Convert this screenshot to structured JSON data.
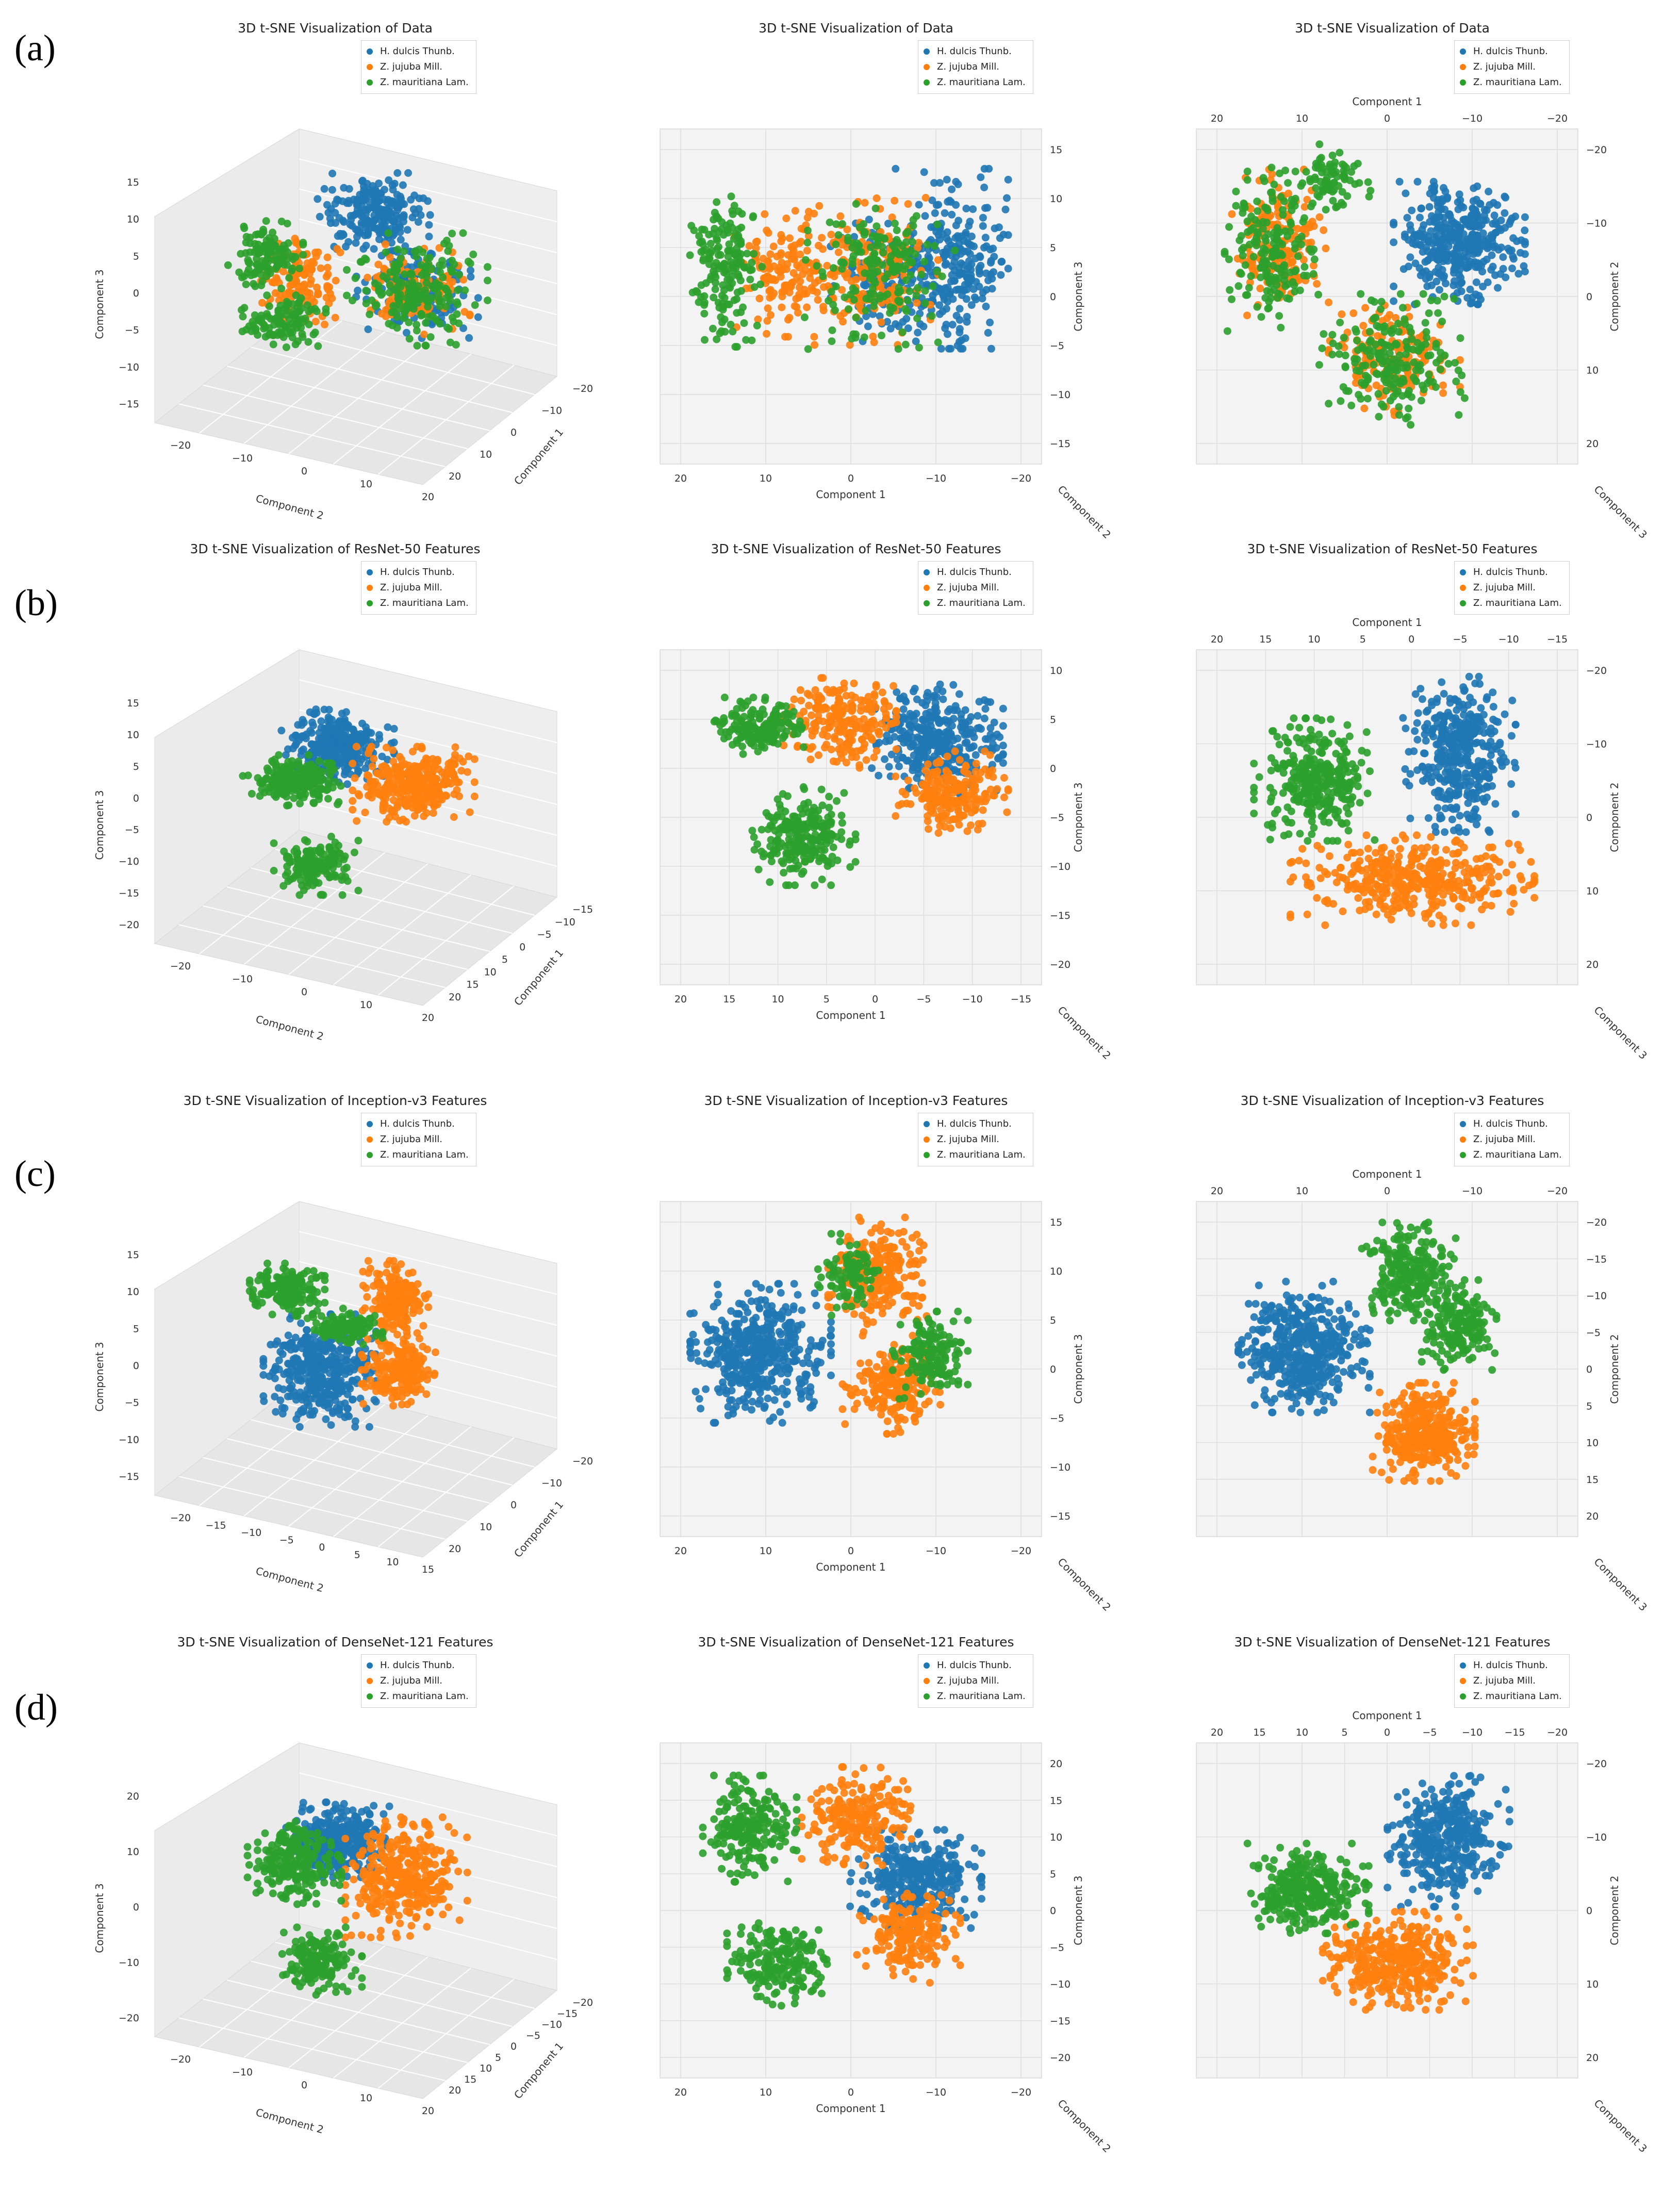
{
  "colors": {
    "H. dulcis Thunb.": "#1f77b4",
    "Z. jujuba Mill.": "#ff7f0e",
    "Z. mauritiana Lam.": "#2ca02c"
  },
  "legend": [
    "H. dulcis Thunb.",
    "Z. jujuba Mill.",
    "Z. mauritiana Lam."
  ],
  "rows": [
    {
      "label": "(a)",
      "title": "3D t-SNE Visualization of Data"
    },
    {
      "label": "(b)",
      "title": "3D t-SNE Visualization of ResNet-50 Features"
    },
    {
      "label": "(c)",
      "title": "3D t-SNE Visualization of Inception-v3 Features"
    },
    {
      "label": "(d)",
      "title": "3D t-SNE Visualization of DenseNet-121 Features"
    }
  ],
  "chart_data": [
    {
      "type": "scatter",
      "row": "(a)",
      "view": "isometric",
      "title": "3D t-SNE Visualization of Data",
      "xlabel": "Component 2",
      "ylabel": "Component 1",
      "zlabel": "Component 3",
      "xticks": [
        "−20",
        "−10",
        "0",
        "10",
        "20"
      ],
      "yticks": [
        "−20",
        "−10",
        "0",
        "10",
        "20"
      ],
      "zticks": [
        "15",
        "10",
        "5",
        "0",
        "−5",
        "−10",
        "−15"
      ],
      "series": [
        {
          "name": "H. dulcis Thunb.",
          "clusters": [
            {
              "u": 0.55,
              "v": 0.26,
              "rx": 0.12,
              "ry": 0.11,
              "n": 230
            },
            {
              "u": 0.67,
              "v": 0.52,
              "rx": 0.13,
              "ry": 0.13,
              "n": 150
            }
          ]
        },
        {
          "name": "Z. jujuba Mill.",
          "clusters": [
            {
              "u": 0.34,
              "v": 0.5,
              "rx": 0.09,
              "ry": 0.12,
              "n": 130
            },
            {
              "u": 0.66,
              "v": 0.52,
              "rx": 0.12,
              "ry": 0.12,
              "n": 120
            }
          ]
        },
        {
          "name": "Z. mauritiana Lam.",
          "clusters": [
            {
              "u": 0.25,
              "v": 0.4,
              "rx": 0.08,
              "ry": 0.09,
              "n": 120
            },
            {
              "u": 0.3,
              "v": 0.63,
              "rx": 0.09,
              "ry": 0.08,
              "n": 110
            },
            {
              "u": 0.67,
              "v": 0.52,
              "rx": 0.15,
              "ry": 0.15,
              "n": 200
            }
          ]
        }
      ]
    },
    {
      "type": "scatter",
      "row": "(a)",
      "view": "front",
      "title": "3D t-SNE Visualization of Data",
      "xlabel": "Component 1",
      "ylabel": "Component 3",
      "zlabel": "Component 2",
      "xticks": [
        "20",
        "10",
        "0",
        "−10",
        "−20"
      ],
      "yticks": [
        "15",
        "10",
        "5",
        "0",
        "−5",
        "−10",
        "−15"
      ],
      "series": [
        {
          "name": "H. dulcis Thunb.",
          "clusters": [
            {
              "u": 0.78,
              "v": 0.38,
              "rx": 0.12,
              "ry": 0.22,
              "n": 250
            },
            {
              "u": 0.6,
              "v": 0.45,
              "rx": 0.12,
              "ry": 0.16,
              "n": 120
            }
          ]
        },
        {
          "name": "Z. jujuba Mill.",
          "clusters": [
            {
              "u": 0.32,
              "v": 0.42,
              "rx": 0.12,
              "ry": 0.16,
              "n": 150
            },
            {
              "u": 0.56,
              "v": 0.42,
              "rx": 0.14,
              "ry": 0.18,
              "n": 170
            }
          ]
        },
        {
          "name": "Z. mauritiana Lam.",
          "clusters": [
            {
              "u": 0.15,
              "v": 0.4,
              "rx": 0.08,
              "ry": 0.2,
              "n": 170
            },
            {
              "u": 0.58,
              "v": 0.42,
              "rx": 0.16,
              "ry": 0.19,
              "n": 180
            }
          ]
        }
      ]
    },
    {
      "type": "scatter",
      "row": "(a)",
      "view": "top",
      "title": "3D t-SNE Visualization of Data",
      "xlabel": "Component 1",
      "ylabel": "Component 2",
      "zlabel": "Component 3",
      "xticks": [
        "20",
        "10",
        "0",
        "−10",
        "−20"
      ],
      "yticks": [
        "−20",
        "−10",
        "0",
        "10",
        "20"
      ],
      "series": [
        {
          "name": "H. dulcis Thunb.",
          "clusters": [
            {
              "u": 0.7,
              "v": 0.33,
              "rx": 0.14,
              "ry": 0.15,
              "n": 380
            }
          ]
        },
        {
          "name": "Z. jujuba Mill.",
          "clusters": [
            {
              "u": 0.2,
              "v": 0.33,
              "rx": 0.1,
              "ry": 0.18,
              "n": 180
            },
            {
              "u": 0.52,
              "v": 0.7,
              "rx": 0.14,
              "ry": 0.14,
              "n": 170
            }
          ]
        },
        {
          "name": "Z. mauritiana Lam.",
          "clusters": [
            {
              "u": 0.18,
              "v": 0.35,
              "rx": 0.1,
              "ry": 0.2,
              "n": 180
            },
            {
              "u": 0.35,
              "v": 0.12,
              "rx": 0.08,
              "ry": 0.08,
              "n": 80
            },
            {
              "u": 0.52,
              "v": 0.7,
              "rx": 0.16,
              "ry": 0.16,
              "n": 200
            }
          ]
        }
      ]
    },
    {
      "type": "scatter",
      "row": "(b)",
      "view": "isometric",
      "title": "3D t-SNE Visualization of ResNet-50 Features",
      "xlabel": "Component 2",
      "ylabel": "Component 1",
      "zlabel": "Component 3",
      "xticks": [
        "−20",
        "−10",
        "0",
        "10",
        "20"
      ],
      "yticks": [
        "−15",
        "−10",
        "−5",
        "0",
        "5",
        "10",
        "15",
        "20"
      ],
      "zticks": [
        "15",
        "10",
        "5",
        "0",
        "−5",
        "−10",
        "−15",
        "−20"
      ],
      "series": [
        {
          "name": "H. dulcis Thunb.",
          "clusters": [
            {
              "u": 0.45,
              "v": 0.3,
              "rx": 0.12,
              "ry": 0.1,
              "n": 320
            }
          ]
        },
        {
          "name": "Z. jujuba Mill.",
          "clusters": [
            {
              "u": 0.66,
              "v": 0.43,
              "rx": 0.13,
              "ry": 0.1,
              "n": 330
            }
          ]
        },
        {
          "name": "Z. mauritiana Lam.",
          "clusters": [
            {
              "u": 0.33,
              "v": 0.42,
              "rx": 0.11,
              "ry": 0.07,
              "n": 220
            },
            {
              "u": 0.39,
              "v": 0.71,
              "rx": 0.09,
              "ry": 0.08,
              "n": 160
            }
          ]
        }
      ]
    },
    {
      "type": "scatter",
      "row": "(b)",
      "view": "front",
      "title": "3D t-SNE Visualization of ResNet-50 Features",
      "xlabel": "Component 1",
      "ylabel": "Component 3",
      "zlabel": "Component 2",
      "xticks": [
        "20",
        "15",
        "10",
        "5",
        "0",
        "−5",
        "−10",
        "−15"
      ],
      "yticks": [
        "10",
        "5",
        "0",
        "−5",
        "−10",
        "−15",
        "−20"
      ],
      "series": [
        {
          "name": "H. dulcis Thunb.",
          "clusters": [
            {
              "u": 0.74,
              "v": 0.25,
              "rx": 0.14,
              "ry": 0.14,
              "n": 350
            }
          ]
        },
        {
          "name": "Z. jujuba Mill.",
          "clusters": [
            {
              "u": 0.47,
              "v": 0.2,
              "rx": 0.12,
              "ry": 0.11,
              "n": 220
            },
            {
              "u": 0.78,
              "v": 0.42,
              "rx": 0.12,
              "ry": 0.1,
              "n": 200
            }
          ]
        },
        {
          "name": "Z. mauritiana Lam.",
          "clusters": [
            {
              "u": 0.25,
              "v": 0.21,
              "rx": 0.1,
              "ry": 0.07,
              "n": 180
            },
            {
              "u": 0.37,
              "v": 0.56,
              "rx": 0.11,
              "ry": 0.12,
              "n": 240
            }
          ]
        }
      ]
    },
    {
      "type": "scatter",
      "row": "(b)",
      "view": "top",
      "title": "3D t-SNE Visualization of ResNet-50 Features",
      "xlabel": "Component 1",
      "ylabel": "Component 2",
      "zlabel": "Component 3",
      "xticks": [
        "20",
        "15",
        "10",
        "5",
        "0",
        "−5",
        "−10",
        "−15"
      ],
      "yticks": [
        "−20",
        "−10",
        "0",
        "10",
        "20"
      ],
      "series": [
        {
          "name": "H. dulcis Thunb.",
          "clusters": [
            {
              "u": 0.7,
              "v": 0.3,
              "rx": 0.12,
              "ry": 0.19,
              "n": 380
            }
          ]
        },
        {
          "name": "Z. jujuba Mill.",
          "clusters": [
            {
              "u": 0.57,
              "v": 0.7,
              "rx": 0.26,
              "ry": 0.11,
              "n": 400
            }
          ]
        },
        {
          "name": "Z. mauritiana Lam.",
          "clusters": [
            {
              "u": 0.3,
              "v": 0.38,
              "rx": 0.13,
              "ry": 0.15,
              "n": 330
            }
          ]
        }
      ]
    },
    {
      "type": "scatter",
      "row": "(c)",
      "view": "isometric",
      "title": "3D t-SNE Visualization of Inception-v3 Features",
      "xlabel": "Component 2",
      "ylabel": "Component 1",
      "zlabel": "Component 3",
      "xticks": [
        "−20",
        "−15",
        "−10",
        "−5",
        "0",
        "5",
        "10",
        "15"
      ],
      "yticks": [
        "−20",
        "−10",
        "0",
        "10",
        "20"
      ],
      "zticks": [
        "15",
        "10",
        "5",
        "0",
        "−5",
        "−10",
        "−15"
      ],
      "series": [
        {
          "name": "H. dulcis Thunb.",
          "clusters": [
            {
              "u": 0.4,
              "v": 0.55,
              "rx": 0.12,
              "ry": 0.15,
              "n": 400
            }
          ]
        },
        {
          "name": "Z. jujuba Mill.",
          "clusters": [
            {
              "u": 0.61,
              "v": 0.3,
              "rx": 0.07,
              "ry": 0.1,
              "n": 200
            },
            {
              "u": 0.62,
              "v": 0.55,
              "rx": 0.08,
              "ry": 0.1,
              "n": 200
            }
          ]
        },
        {
          "name": "Z. mauritiana Lam.",
          "clusters": [
            {
              "u": 0.31,
              "v": 0.27,
              "rx": 0.08,
              "ry": 0.07,
              "n": 180
            },
            {
              "u": 0.47,
              "v": 0.4,
              "rx": 0.08,
              "ry": 0.05,
              "n": 120
            }
          ]
        }
      ]
    },
    {
      "type": "scatter",
      "row": "(c)",
      "view": "front",
      "title": "3D t-SNE Visualization of Inception-v3 Features",
      "xlabel": "Component 1",
      "ylabel": "Component 3",
      "zlabel": "Component 2",
      "xticks": [
        "20",
        "10",
        "0",
        "−10",
        "−20"
      ],
      "yticks": [
        "15",
        "10",
        "5",
        "0",
        "−5",
        "−10",
        "−15"
      ],
      "series": [
        {
          "name": "H. dulcis Thunb.",
          "clusters": [
            {
              "u": 0.25,
              "v": 0.45,
              "rx": 0.15,
              "ry": 0.17,
              "n": 450
            }
          ]
        },
        {
          "name": "Z. jujuba Mill.",
          "clusters": [
            {
              "u": 0.58,
              "v": 0.2,
              "rx": 0.11,
              "ry": 0.14,
              "n": 230
            },
            {
              "u": 0.62,
              "v": 0.55,
              "rx": 0.11,
              "ry": 0.12,
              "n": 200
            }
          ]
        },
        {
          "name": "Z. mauritiana Lam.",
          "clusters": [
            {
              "u": 0.5,
              "v": 0.2,
              "rx": 0.07,
              "ry": 0.1,
              "n": 100
            },
            {
              "u": 0.72,
              "v": 0.46,
              "rx": 0.08,
              "ry": 0.11,
              "n": 160
            }
          ]
        }
      ]
    },
    {
      "type": "scatter",
      "row": "(c)",
      "view": "top",
      "title": "3D t-SNE Visualization of Inception-v3 Features",
      "xlabel": "Component 1",
      "ylabel": "Component 2",
      "zlabel": "Component 3",
      "xticks": [
        "20",
        "10",
        "0",
        "−10",
        "−20"
      ],
      "yticks": [
        "−20",
        "−15",
        "−10",
        "−5",
        "0",
        "5",
        "10",
        "15",
        "20"
      ],
      "series": [
        {
          "name": "H. dulcis Thunb.",
          "clusters": [
            {
              "u": 0.27,
              "v": 0.43,
              "rx": 0.14,
              "ry": 0.16,
              "n": 450
            }
          ]
        },
        {
          "name": "Z. jujuba Mill.",
          "clusters": [
            {
              "u": 0.6,
              "v": 0.7,
              "rx": 0.11,
              "ry": 0.12,
              "n": 380
            }
          ]
        },
        {
          "name": "Z. mauritiana Lam.",
          "clusters": [
            {
              "u": 0.56,
              "v": 0.19,
              "rx": 0.1,
              "ry": 0.12,
              "n": 250
            },
            {
              "u": 0.7,
              "v": 0.36,
              "rx": 0.08,
              "ry": 0.11,
              "n": 180
            }
          ]
        }
      ]
    },
    {
      "type": "scatter",
      "row": "(d)",
      "view": "isometric",
      "title": "3D t-SNE Visualization of DenseNet-121 Features",
      "xlabel": "Component 2",
      "ylabel": "Component 1",
      "zlabel": "Component 3",
      "xticks": [
        "−20",
        "−10",
        "0",
        "10",
        "20"
      ],
      "yticks": [
        "−20",
        "−15",
        "−10",
        "−5",
        "0",
        "5",
        "10",
        "15",
        "20"
      ],
      "zticks": [
        "20",
        "10",
        "0",
        "−10",
        "−20"
      ],
      "series": [
        {
          "name": "H. dulcis Thunb.",
          "clusters": [
            {
              "u": 0.45,
              "v": 0.3,
              "rx": 0.11,
              "ry": 0.1,
              "n": 330
            }
          ]
        },
        {
          "name": "Z. jujuba Mill.",
          "clusters": [
            {
              "u": 0.64,
              "v": 0.43,
              "rx": 0.13,
              "ry": 0.16,
              "n": 350
            }
          ]
        },
        {
          "name": "Z. mauritiana Lam.",
          "clusters": [
            {
              "u": 0.33,
              "v": 0.38,
              "rx": 0.1,
              "ry": 0.11,
              "n": 230
            },
            {
              "u": 0.4,
              "v": 0.72,
              "rx": 0.09,
              "ry": 0.09,
              "n": 170
            }
          ]
        }
      ]
    },
    {
      "type": "scatter",
      "row": "(d)",
      "view": "front",
      "title": "3D t-SNE Visualization of DenseNet-121 Features",
      "xlabel": "Component 1",
      "ylabel": "Component 3",
      "zlabel": "Component 2",
      "xticks": [
        "20",
        "10",
        "0",
        "−10",
        "−20"
      ],
      "yticks": [
        "20",
        "15",
        "10",
        "5",
        "0",
        "−5",
        "−10",
        "−15",
        "−20"
      ],
      "series": [
        {
          "name": "H. dulcis Thunb.",
          "clusters": [
            {
              "u": 0.68,
              "v": 0.4,
              "rx": 0.14,
              "ry": 0.12,
              "n": 330
            }
          ]
        },
        {
          "name": "Z. jujuba Mill.",
          "clusters": [
            {
              "u": 0.52,
              "v": 0.2,
              "rx": 0.12,
              "ry": 0.12,
              "n": 220
            },
            {
              "u": 0.66,
              "v": 0.58,
              "rx": 0.11,
              "ry": 0.12,
              "n": 200
            }
          ]
        },
        {
          "name": "Z. mauritiana Lam.",
          "clusters": [
            {
              "u": 0.22,
              "v": 0.24,
              "rx": 0.1,
              "ry": 0.13,
              "n": 220
            },
            {
              "u": 0.3,
              "v": 0.66,
              "rx": 0.11,
              "ry": 0.11,
              "n": 200
            }
          ]
        }
      ]
    },
    {
      "type": "scatter",
      "row": "(d)",
      "view": "top",
      "title": "3D t-SNE Visualization of DenseNet-121 Features",
      "xlabel": "Component 1",
      "ylabel": "Component 2",
      "zlabel": "Component 3",
      "xticks": [
        "20",
        "15",
        "10",
        "5",
        "0",
        "−5",
        "−10",
        "−15",
        "−20"
      ],
      "yticks": [
        "−20",
        "−10",
        "0",
        "10",
        "20"
      ],
      "series": [
        {
          "name": "H. dulcis Thunb.",
          "clusters": [
            {
              "u": 0.67,
              "v": 0.28,
              "rx": 0.13,
              "ry": 0.16,
              "n": 380
            }
          ]
        },
        {
          "name": "Z. jujuba Mill.",
          "clusters": [
            {
              "u": 0.53,
              "v": 0.66,
              "rx": 0.16,
              "ry": 0.12,
              "n": 380
            }
          ]
        },
        {
          "name": "Z. mauritiana Lam.",
          "clusters": [
            {
              "u": 0.28,
              "v": 0.43,
              "rx": 0.13,
              "ry": 0.11,
              "n": 330
            }
          ]
        }
      ]
    }
  ]
}
